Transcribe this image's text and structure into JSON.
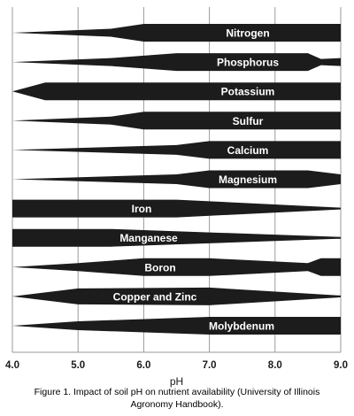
{
  "chart_data": {
    "type": "other",
    "title": "",
    "xlabel": "pH",
    "ylabel": "",
    "xlim": [
      4.0,
      9.0
    ],
    "x_ticks": [
      "4.0",
      "5.0",
      "6.0",
      "7.0",
      "8.0",
      "9.0"
    ],
    "grid": "vertical",
    "series": [
      {
        "name": "Nitrogen",
        "availability": [
          [
            4.0,
            0.0
          ],
          [
            5.5,
            0.45
          ],
          [
            6.0,
            1.0
          ],
          [
            9.0,
            1.0
          ]
        ]
      },
      {
        "name": "Phosphorus",
        "availability": [
          [
            4.0,
            0.0
          ],
          [
            5.5,
            0.45
          ],
          [
            6.5,
            1.0
          ],
          [
            8.5,
            1.0
          ],
          [
            8.7,
            0.35
          ],
          [
            9.0,
            0.45
          ]
        ]
      },
      {
        "name": "Potassium",
        "availability": [
          [
            4.0,
            0.0
          ],
          [
            4.5,
            1.0
          ],
          [
            9.0,
            1.0
          ]
        ]
      },
      {
        "name": "Sulfur",
        "availability": [
          [
            4.0,
            0.0
          ],
          [
            5.5,
            0.45
          ],
          [
            6.0,
            1.0
          ],
          [
            9.0,
            1.0
          ]
        ]
      },
      {
        "name": "Calcium",
        "availability": [
          [
            4.0,
            0.0
          ],
          [
            6.5,
            0.55
          ],
          [
            7.0,
            1.0
          ],
          [
            9.0,
            1.0
          ]
        ]
      },
      {
        "name": "Magnesium",
        "availability": [
          [
            4.0,
            0.0
          ],
          [
            6.5,
            0.55
          ],
          [
            7.0,
            1.0
          ],
          [
            8.5,
            1.0
          ],
          [
            9.0,
            0.55
          ]
        ]
      },
      {
        "name": "Iron",
        "availability": [
          [
            4.0,
            1.0
          ],
          [
            6.5,
            1.0
          ],
          [
            9.0,
            0.1
          ]
        ]
      },
      {
        "name": "Manganese",
        "availability": [
          [
            4.0,
            1.0
          ],
          [
            5.5,
            1.0
          ],
          [
            9.0,
            0.1
          ]
        ]
      },
      {
        "name": "Boron",
        "availability": [
          [
            4.0,
            0.0
          ],
          [
            5.0,
            0.45
          ],
          [
            6.0,
            1.0
          ],
          [
            7.0,
            1.0
          ],
          [
            8.5,
            0.45
          ],
          [
            8.7,
            1.0
          ],
          [
            9.0,
            1.0
          ]
        ]
      },
      {
        "name": "Copper and Zinc",
        "availability": [
          [
            4.0,
            0.0
          ],
          [
            5.0,
            0.9
          ],
          [
            7.0,
            1.0
          ],
          [
            9.0,
            0.1
          ]
        ]
      },
      {
        "name": "Molybdenum",
        "availability": [
          [
            4.0,
            0.0
          ],
          [
            5.0,
            0.5
          ],
          [
            7.0,
            1.0
          ],
          [
            9.0,
            1.0
          ]
        ]
      }
    ],
    "caption_line1": "Figure 1.  Impact of soil pH on nutrient availability (University of Illinois",
    "caption_line2": "Agronomy Handbook)."
  }
}
